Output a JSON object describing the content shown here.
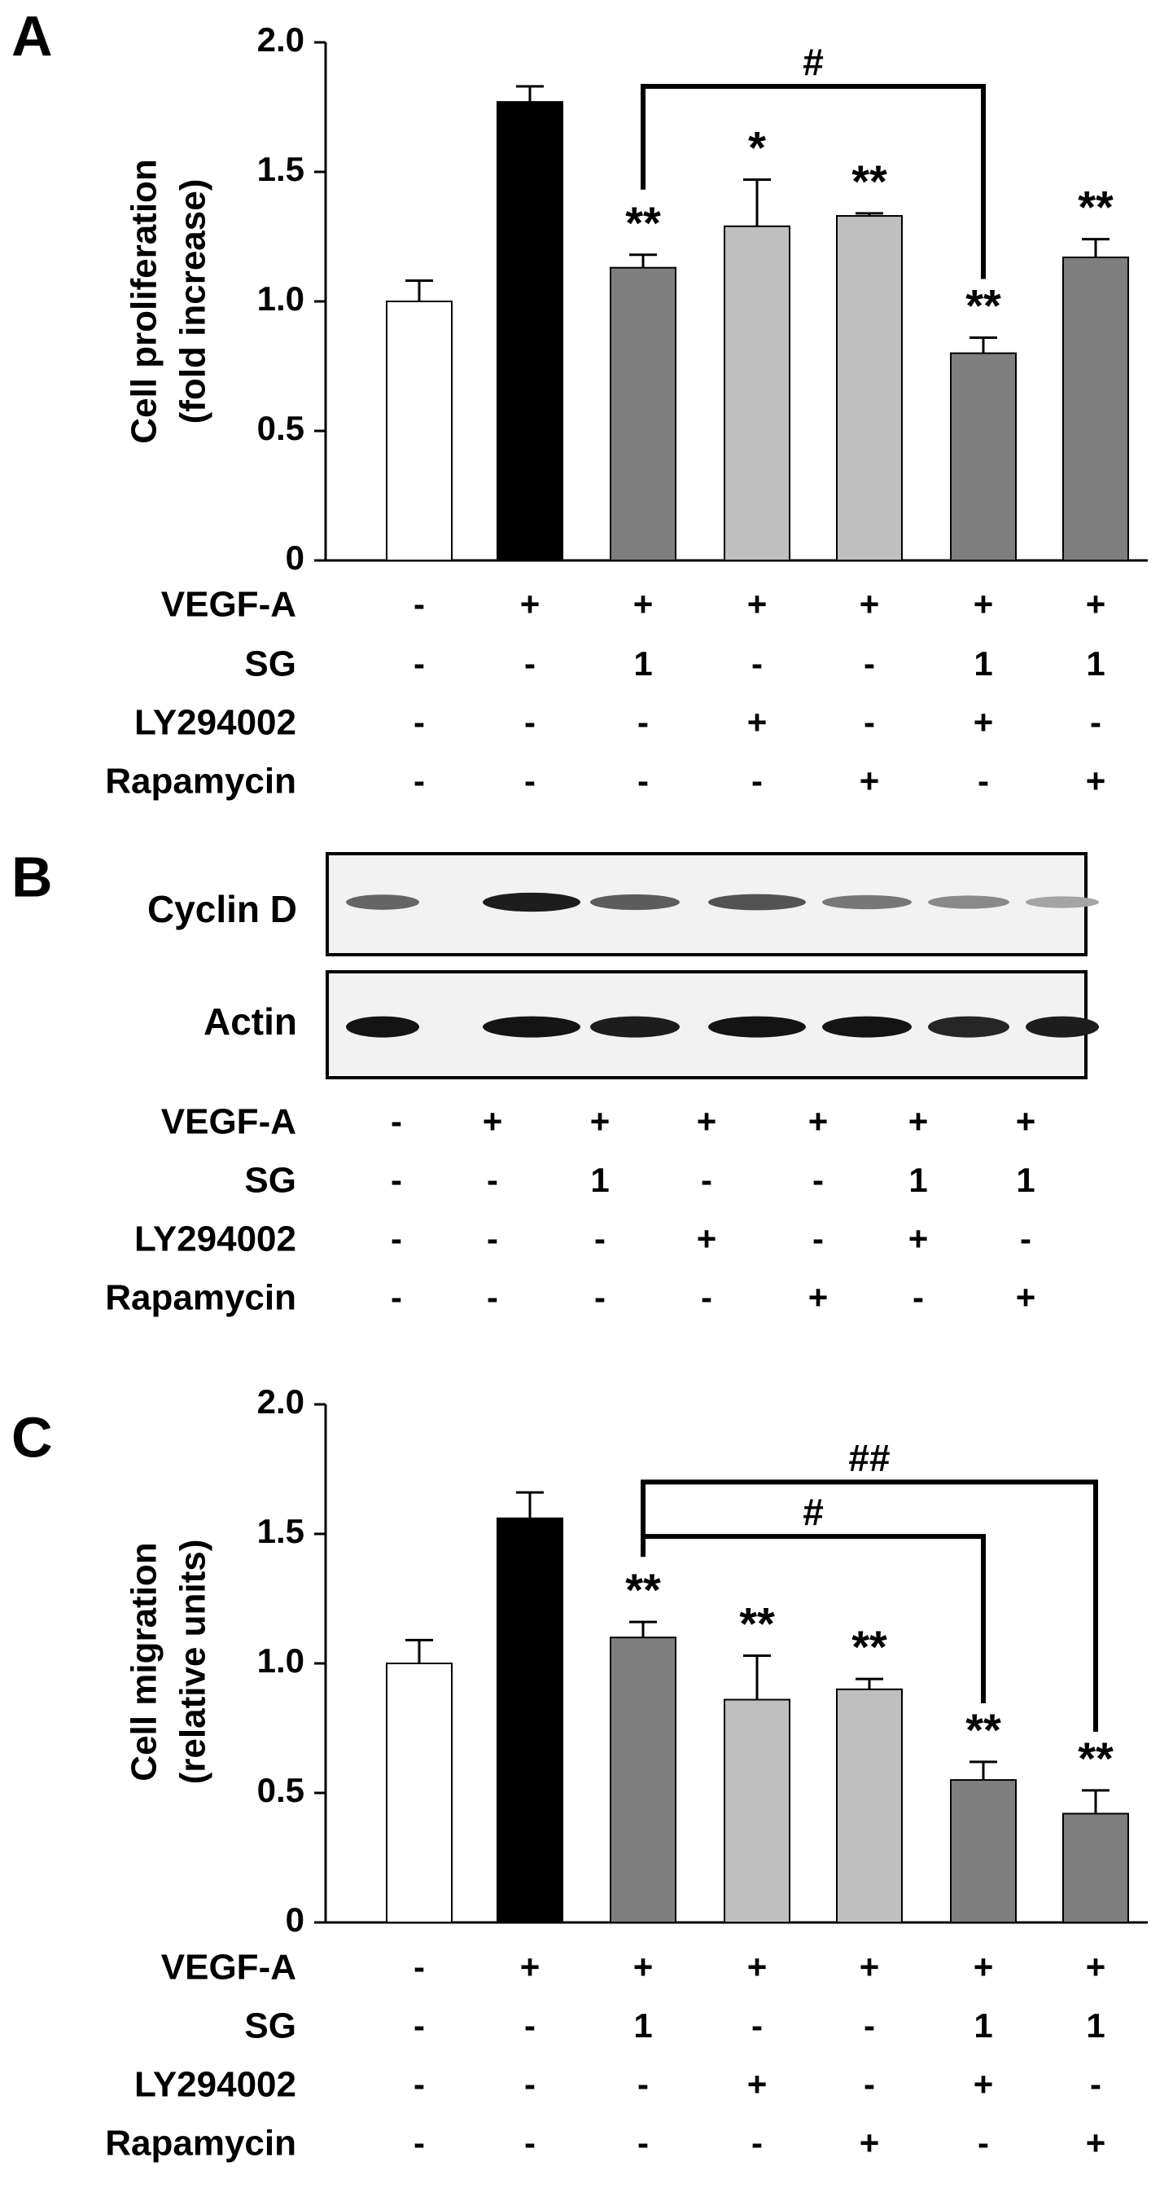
{
  "chart_data": [
    {
      "panel": "A",
      "type": "bar",
      "ylabel": [
        "Cell proliferation",
        "(fold increase)"
      ],
      "ylim": [
        0,
        2.0
      ],
      "yticks": [
        0,
        0.5,
        1.0,
        1.5,
        2.0
      ],
      "ytick_labels": [
        "0",
        "0.5",
        "1.0",
        "1.5",
        "2.0"
      ],
      "values": [
        1.0,
        1.77,
        1.13,
        1.29,
        1.33,
        0.8,
        1.17
      ],
      "errors": [
        0.08,
        0.06,
        0.05,
        0.18,
        0.01,
        0.06,
        0.07
      ],
      "fills": [
        "#ffffff",
        "#000000",
        "#7f7f7f",
        "#bfbfbf",
        "#bfbfbf",
        "#7f7f7f",
        "#7f7f7f"
      ],
      "significance": [
        "",
        "",
        "**",
        "*",
        "**",
        "**",
        "**"
      ],
      "brackets": [
        {
          "from": 2,
          "to": 5,
          "level": 1.83,
          "label": "#"
        }
      ],
      "conditions": [
        {
          "label": "VEGF-A",
          "values": [
            "-",
            "+",
            "+",
            "+",
            "+",
            "+",
            "+"
          ]
        },
        {
          "label": "SG",
          "values": [
            "-",
            "-",
            "1",
            "-",
            "-",
            "1",
            "1"
          ]
        },
        {
          "label": "LY294002",
          "values": [
            "-",
            "-",
            "-",
            "+",
            "-",
            "+",
            "-"
          ]
        },
        {
          "label": "Rapamycin",
          "values": [
            "-",
            "-",
            "-",
            "-",
            "+",
            "-",
            "+"
          ]
        }
      ]
    },
    {
      "panel": "B",
      "type": "blot",
      "rows": [
        {
          "label": "Cyclin D",
          "intensity": [
            0.55,
            0.95,
            0.6,
            0.65,
            0.45,
            0.35,
            0.2
          ]
        },
        {
          "label": "Actin",
          "intensity": [
            1.0,
            1.0,
            0.95,
            1.0,
            1.0,
            0.9,
            0.95
          ]
        }
      ],
      "conditions": [
        {
          "label": "VEGF-A",
          "values": [
            "-",
            "+",
            "+",
            "+",
            "+",
            "+",
            "+"
          ]
        },
        {
          "label": "SG",
          "values": [
            "-",
            "-",
            "1",
            "-",
            "-",
            "1",
            "1"
          ]
        },
        {
          "label": "LY294002",
          "values": [
            "-",
            "-",
            "-",
            "+",
            "-",
            "+",
            "-"
          ]
        },
        {
          "label": "Rapamycin",
          "values": [
            "-",
            "-",
            "-",
            "-",
            "+",
            "-",
            "+"
          ]
        }
      ]
    },
    {
      "panel": "C",
      "type": "bar",
      "ylabel": [
        "Cell migration",
        "(relative units)"
      ],
      "ylim": [
        0,
        2.0
      ],
      "yticks": [
        0,
        0.5,
        1.0,
        1.5,
        2.0
      ],
      "ytick_labels": [
        "0",
        "0.5",
        "1.0",
        "1.5",
        "2.0"
      ],
      "values": [
        1.0,
        1.56,
        1.1,
        0.86,
        0.9,
        0.55,
        0.42
      ],
      "errors": [
        0.09,
        0.1,
        0.06,
        0.17,
        0.04,
        0.07,
        0.09
      ],
      "fills": [
        "#ffffff",
        "#000000",
        "#7f7f7f",
        "#bfbfbf",
        "#bfbfbf",
        "#7f7f7f",
        "#7f7f7f"
      ],
      "significance": [
        "",
        "",
        "**",
        "**",
        "**",
        "**",
        "**"
      ],
      "brackets": [
        {
          "from": 2,
          "to": 6,
          "level": 1.7,
          "label": "##"
        },
        {
          "from": 2,
          "to": 5,
          "level": 1.49,
          "label": "#"
        }
      ],
      "conditions": [
        {
          "label": "VEGF-A",
          "values": [
            "-",
            "+",
            "+",
            "+",
            "+",
            "+",
            "+"
          ]
        },
        {
          "label": "SG",
          "values": [
            "-",
            "-",
            "1",
            "-",
            "-",
            "1",
            "1"
          ]
        },
        {
          "label": "LY294002",
          "values": [
            "-",
            "-",
            "-",
            "+",
            "-",
            "+",
            "-"
          ]
        },
        {
          "label": "Rapamycin",
          "values": [
            "-",
            "-",
            "-",
            "-",
            "+",
            "-",
            "+"
          ]
        }
      ]
    }
  ]
}
